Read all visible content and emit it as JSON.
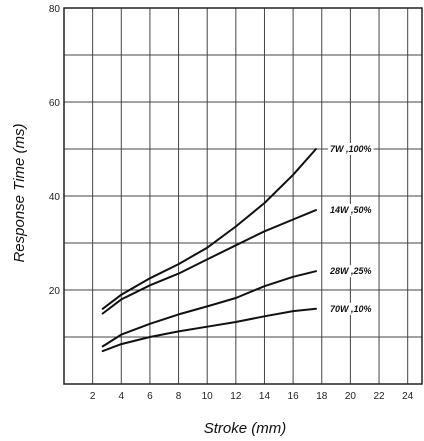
{
  "chart_data": {
    "type": "line",
    "xlabel": "Stroke (mm)",
    "ylabel": "Response Time (ms)",
    "xlim": [
      0,
      25
    ],
    "ylim": [
      0,
      80
    ],
    "x_ticks": [
      2,
      4,
      6,
      8,
      10,
      12,
      14,
      16,
      18,
      20,
      22,
      24
    ],
    "y_ticks": [
      20,
      40,
      60,
      80
    ],
    "grid": true,
    "series": [
      {
        "name": "7W ,100%",
        "x": [
          2.7,
          4,
          6,
          8,
          10,
          12,
          14,
          16,
          17.6
        ],
        "y": [
          16,
          19,
          22.5,
          25.5,
          29,
          33.5,
          38.5,
          44.5,
          50
        ]
      },
      {
        "name": "14W ,50%",
        "x": [
          2.7,
          4,
          6,
          8,
          10,
          12,
          14,
          16,
          17.6
        ],
        "y": [
          15,
          18,
          21,
          23.5,
          26.5,
          29.5,
          32.5,
          35,
          37
        ]
      },
      {
        "name": "28W ,25%",
        "x": [
          2.7,
          4,
          6,
          8,
          10,
          12,
          14,
          16,
          17.6
        ],
        "y": [
          8,
          10.5,
          12.8,
          14.8,
          16.5,
          18.3,
          20.8,
          22.8,
          24
        ]
      },
      {
        "name": "70W ,10%",
        "x": [
          2.7,
          4,
          6,
          8,
          10,
          12,
          14,
          16,
          17.6
        ],
        "y": [
          7,
          8.5,
          10,
          11.2,
          12.2,
          13.2,
          14.4,
          15.5,
          16
        ]
      }
    ]
  }
}
